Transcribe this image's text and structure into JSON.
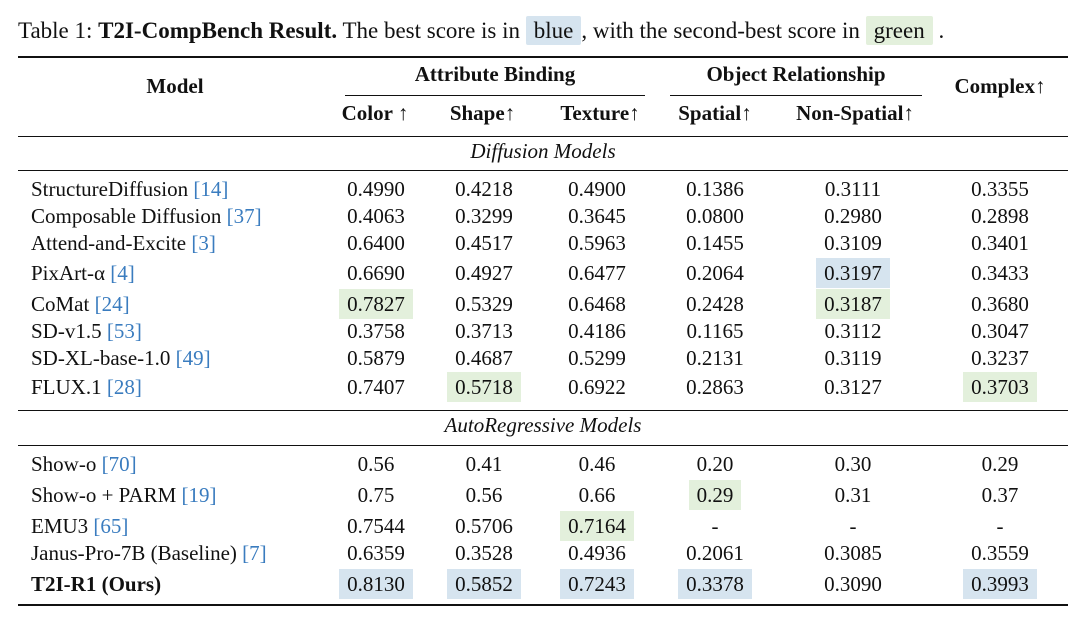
{
  "caption": {
    "label": "Table 1:",
    "title": "T2I-CompBench Result.",
    "text_before": "The best score is in",
    "best_word": "blue",
    "text_middle": ", with the second-best score in",
    "second_word": "green",
    "text_after": "."
  },
  "colors": {
    "best": "#d6e4ef",
    "second": "#e3f0dc",
    "ref": "#3a7cbf"
  },
  "header": {
    "model": "Model",
    "group_attribute": "Attribute Binding",
    "group_object": "Object Relationship",
    "complex": "Complex↑",
    "columns": [
      "Color ↑",
      "Shape↑",
      "Texture↑",
      "Spatial↑",
      "Non-Spatial↑"
    ]
  },
  "sections": [
    {
      "title": "Diffusion Models",
      "rows": [
        {
          "model": "StructureDiffusion ",
          "ref": "[14]",
          "values": [
            "0.4990",
            "0.4218",
            "0.4900",
            "0.1386",
            "0.3111",
            "0.3355"
          ],
          "marks": [
            "",
            "",
            "",
            "",
            "",
            ""
          ]
        },
        {
          "model": "Composable Diffusion ",
          "ref": "[37]",
          "values": [
            "0.4063",
            "0.3299",
            "0.3645",
            "0.0800",
            "0.2980",
            "0.2898"
          ],
          "marks": [
            "",
            "",
            "",
            "",
            "",
            ""
          ]
        },
        {
          "model": "Attend-and-Excite ",
          "ref": "[3]",
          "values": [
            "0.6400",
            "0.4517",
            "0.5963",
            "0.1455",
            "0.3109",
            "0.3401"
          ],
          "marks": [
            "",
            "",
            "",
            "",
            "",
            ""
          ]
        },
        {
          "model": "PixArt-α ",
          "ref": "[4]",
          "values": [
            "0.6690",
            "0.4927",
            "0.6477",
            "0.2064",
            "0.3197",
            "0.3433"
          ],
          "marks": [
            "",
            "",
            "",
            "",
            "best",
            ""
          ]
        },
        {
          "model": "CoMat ",
          "ref": "[24]",
          "values": [
            "0.7827",
            "0.5329",
            "0.6468",
            "0.2428",
            "0.3187",
            "0.3680"
          ],
          "marks": [
            "second",
            "",
            "",
            "",
            "second",
            ""
          ]
        },
        {
          "model": "SD-v1.5 ",
          "ref": "[53]",
          "values": [
            "0.3758",
            "0.3713",
            "0.4186",
            "0.1165",
            "0.3112",
            "0.3047"
          ],
          "marks": [
            "",
            "",
            "",
            "",
            "",
            ""
          ]
        },
        {
          "model": "SD-XL-base-1.0 ",
          "ref": "[49]",
          "values": [
            "0.5879",
            "0.4687",
            "0.5299",
            "0.2131",
            "0.3119",
            "0.3237"
          ],
          "marks": [
            "",
            "",
            "",
            "",
            "",
            ""
          ]
        },
        {
          "model": "FLUX.1 ",
          "ref": "[28]",
          "values": [
            "0.7407",
            "0.5718",
            "0.6922",
            "0.2863",
            "0.3127",
            "0.3703"
          ],
          "marks": [
            "",
            "second",
            "",
            "",
            "",
            "second"
          ]
        }
      ]
    },
    {
      "title": "AutoRegressive Models",
      "rows": [
        {
          "model": "Show-o ",
          "ref": "[70]",
          "values": [
            "0.56",
            "0.41",
            "0.46",
            "0.20",
            "0.30",
            "0.29"
          ],
          "marks": [
            "",
            "",
            "",
            "",
            "",
            ""
          ]
        },
        {
          "model": "Show-o + PARM ",
          "ref": "[19]",
          "values": [
            "0.75",
            "0.56",
            "0.66",
            "0.29",
            "0.31",
            "0.37"
          ],
          "marks": [
            "",
            "",
            "",
            "second",
            "",
            ""
          ]
        },
        {
          "model": "EMU3 ",
          "ref": "[65]",
          "values": [
            "0.7544",
            "0.5706",
            "0.7164",
            "-",
            "-",
            "-"
          ],
          "marks": [
            "",
            "",
            "second",
            "",
            "",
            ""
          ]
        },
        {
          "model": "Janus-Pro-7B (Baseline) ",
          "ref": "[7]",
          "values": [
            "0.6359",
            "0.3528",
            "0.4936",
            "0.2061",
            "0.3085",
            "0.3559"
          ],
          "marks": [
            "",
            "",
            "",
            "",
            "",
            ""
          ]
        },
        {
          "model": "T2I-R1 (Ours)",
          "ref": "",
          "values": [
            "0.8130",
            "0.5852",
            "0.7243",
            "0.3378",
            "0.3090",
            "0.3993"
          ],
          "marks": [
            "best",
            "best",
            "best",
            "best",
            "",
            "best"
          ],
          "bold": true
        }
      ]
    }
  ]
}
